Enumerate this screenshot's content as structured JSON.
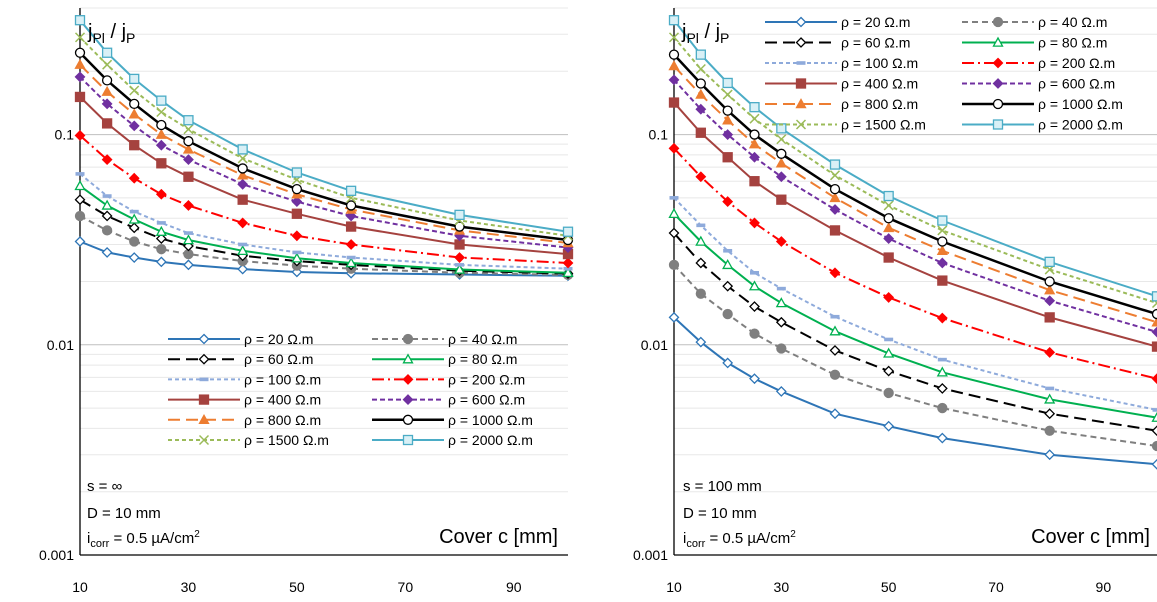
{
  "chart_data": [
    {
      "type": "line",
      "panel_id": "left",
      "y_label_main": "j",
      "y_label_sub1": "Pl",
      "y_label_sep": " / j",
      "y_label_sub2": "P",
      "xlabel": "Cover c [mm]",
      "x_ticks": [
        10,
        30,
        50,
        70,
        90
      ],
      "y_ticks": [
        "0.001",
        "0.01",
        "0.1"
      ],
      "xlim": [
        10,
        100
      ],
      "ylim": [
        0.001,
        0.4
      ],
      "y_scale": "log",
      "grid": true,
      "legend_placement": "lower-center",
      "annot": {
        "l1": "s = ∞",
        "l2": "D = 10 mm",
        "l3_main": "i",
        "l3_sub": "corr",
        "l3_val": " = 0.5 µA/cm",
        "l3_sup": "2"
      },
      "x": [
        10,
        15,
        20,
        25,
        30,
        40,
        50,
        60,
        80,
        100
      ],
      "series": [
        {
          "name": "ρ = 20 Ω.m",
          "values": [
            0.031,
            0.0275,
            0.026,
            0.0248,
            0.024,
            0.0229,
            0.0222,
            0.0219,
            0.0216,
            0.0213
          ]
        },
        {
          "name": "ρ = 40 Ω.m",
          "values": [
            0.041,
            0.035,
            0.031,
            0.0285,
            0.027,
            0.025,
            0.0238,
            0.023,
            0.022,
            0.0215
          ]
        },
        {
          "name": "ρ = 60 Ω.m",
          "values": [
            0.049,
            0.041,
            0.036,
            0.032,
            0.0295,
            0.0265,
            0.025,
            0.024,
            0.0225,
            0.0218
          ]
        },
        {
          "name": "ρ = 80 Ω.m",
          "values": [
            0.057,
            0.046,
            0.0395,
            0.0345,
            0.0315,
            0.028,
            0.0258,
            0.0245,
            0.0228,
            0.022
          ]
        },
        {
          "name": "ρ = 100 Ω.m",
          "values": [
            0.065,
            0.051,
            0.043,
            0.038,
            0.034,
            0.03,
            0.0275,
            0.026,
            0.024,
            0.023
          ]
        },
        {
          "name": "ρ = 200 Ω.m",
          "values": [
            0.099,
            0.076,
            0.062,
            0.052,
            0.046,
            0.038,
            0.033,
            0.03,
            0.026,
            0.0245
          ]
        },
        {
          "name": "ρ = 400 Ω.m",
          "values": [
            0.151,
            0.113,
            0.089,
            0.073,
            0.063,
            0.049,
            0.042,
            0.0365,
            0.03,
            0.027
          ]
        },
        {
          "name": "ρ = 600 Ω.m",
          "values": [
            0.188,
            0.14,
            0.11,
            0.089,
            0.076,
            0.058,
            0.048,
            0.041,
            0.033,
            0.029
          ]
        },
        {
          "name": "ρ = 800 Ω.m",
          "values": [
            0.215,
            0.16,
            0.125,
            0.1,
            0.085,
            0.064,
            0.052,
            0.044,
            0.035,
            0.0305
          ]
        },
        {
          "name": "ρ = 1000 Ω.m",
          "values": [
            0.245,
            0.181,
            0.14,
            0.111,
            0.093,
            0.069,
            0.055,
            0.046,
            0.0365,
            0.0315
          ]
        },
        {
          "name": "ρ = 1500 Ω.m",
          "values": [
            0.29,
            0.215,
            0.162,
            0.128,
            0.106,
            0.077,
            0.061,
            0.05,
            0.039,
            0.033
          ]
        },
        {
          "name": "ρ = 2000 Ω.m",
          "values": [
            0.35,
            0.245,
            0.184,
            0.145,
            0.117,
            0.085,
            0.066,
            0.054,
            0.0415,
            0.0345
          ]
        }
      ]
    },
    {
      "type": "line",
      "panel_id": "right",
      "y_label_main": "j",
      "y_label_sub1": "Pl",
      "y_label_sep": " / j",
      "y_label_sub2": "P",
      "xlabel": "Cover c [mm]",
      "x_ticks": [
        10,
        30,
        50,
        70,
        90
      ],
      "y_ticks": [
        "0.001",
        "0.01",
        "0.1"
      ],
      "xlim": [
        10,
        100
      ],
      "ylim": [
        0.001,
        0.4
      ],
      "y_scale": "log",
      "grid": true,
      "legend_placement": "top-right",
      "annot": {
        "l1": "s = 100 mm",
        "l2": "D = 10 mm",
        "l3_main": "i",
        "l3_sub": "corr",
        "l3_val": " = 0.5 µA/cm",
        "l3_sup": "2"
      },
      "x": [
        10,
        15,
        20,
        25,
        30,
        40,
        50,
        60,
        80,
        100
      ],
      "series": [
        {
          "name": "ρ = 20 Ω.m",
          "values": [
            0.0135,
            0.0103,
            0.0082,
            0.0069,
            0.006,
            0.0047,
            0.0041,
            0.0036,
            0.003,
            0.0027
          ]
        },
        {
          "name": "ρ = 40 Ω.m",
          "values": [
            0.024,
            0.0175,
            0.014,
            0.0113,
            0.0096,
            0.0072,
            0.0059,
            0.005,
            0.0039,
            0.0033
          ]
        },
        {
          "name": "ρ = 60 Ω.m",
          "values": [
            0.034,
            0.0245,
            0.019,
            0.0152,
            0.0128,
            0.0094,
            0.0075,
            0.0062,
            0.0047,
            0.0039
          ]
        },
        {
          "name": "ρ = 80 Ω.m",
          "values": [
            0.042,
            0.031,
            0.024,
            0.019,
            0.0158,
            0.0116,
            0.0091,
            0.0074,
            0.0055,
            0.0045
          ]
        },
        {
          "name": "ρ = 100 Ω.m",
          "values": [
            0.05,
            0.037,
            0.028,
            0.022,
            0.0185,
            0.0136,
            0.0106,
            0.0085,
            0.0062,
            0.0049
          ]
        },
        {
          "name": "ρ = 200 Ω.m",
          "values": [
            0.086,
            0.063,
            0.048,
            0.038,
            0.031,
            0.022,
            0.0168,
            0.0134,
            0.0092,
            0.0069
          ]
        },
        {
          "name": "ρ = 400 Ω.m",
          "values": [
            0.142,
            0.102,
            0.078,
            0.06,
            0.049,
            0.035,
            0.026,
            0.0202,
            0.0135,
            0.0098
          ]
        },
        {
          "name": "ρ = 600 Ω.m",
          "values": [
            0.182,
            0.132,
            0.1,
            0.078,
            0.063,
            0.044,
            0.032,
            0.0245,
            0.0162,
            0.0115
          ]
        },
        {
          "name": "ρ = 800 Ω.m",
          "values": [
            0.212,
            0.155,
            0.117,
            0.09,
            0.073,
            0.05,
            0.036,
            0.028,
            0.0182,
            0.0128
          ]
        },
        {
          "name": "ρ = 1000 Ω.m",
          "values": [
            0.24,
            0.175,
            0.13,
            0.1,
            0.081,
            0.055,
            0.04,
            0.031,
            0.02,
            0.014
          ]
        },
        {
          "name": "ρ = 1500 Ω.m",
          "values": [
            0.29,
            0.205,
            0.155,
            0.119,
            0.095,
            0.064,
            0.046,
            0.035,
            0.0228,
            0.0158
          ]
        },
        {
          "name": "ρ = 2000 Ω.m",
          "values": [
            0.35,
            0.24,
            0.176,
            0.135,
            0.107,
            0.072,
            0.051,
            0.039,
            0.0248,
            0.017
          ]
        }
      ]
    }
  ],
  "styles": [
    {
      "color": "#2e75b6",
      "dash": "",
      "marker": "diamond-open",
      "width": 2
    },
    {
      "color": "#7f7f7f",
      "dash": "6,4",
      "marker": "circle-filled",
      "width": 2
    },
    {
      "color": "#000000",
      "dash": "12,6",
      "marker": "diamond-open",
      "width": 2
    },
    {
      "color": "#00b050",
      "dash": "",
      "marker": "triangle-open",
      "width": 2
    },
    {
      "color": "#8eaadb",
      "dash": "4,3",
      "marker": "dash",
      "width": 2
    },
    {
      "color": "#ff0000",
      "dash": "12,4,2,4",
      "marker": "diamond-filled",
      "width": 2
    },
    {
      "color": "#a5423f",
      "dash": "",
      "marker": "square-filled",
      "width": 2
    },
    {
      "color": "#7030a0",
      "dash": "5,3",
      "marker": "diamond-filled",
      "width": 2
    },
    {
      "color": "#ed7d31",
      "dash": "12,6",
      "marker": "triangle-filled",
      "width": 2
    },
    {
      "color": "#000000",
      "dash": "",
      "marker": "circle-open",
      "width": 2.5
    },
    {
      "color": "#9bbb59",
      "dash": "4,3",
      "marker": "x",
      "width": 2
    },
    {
      "color": "#4bacc6",
      "dash": "",
      "marker": "square-open",
      "width": 2
    }
  ]
}
